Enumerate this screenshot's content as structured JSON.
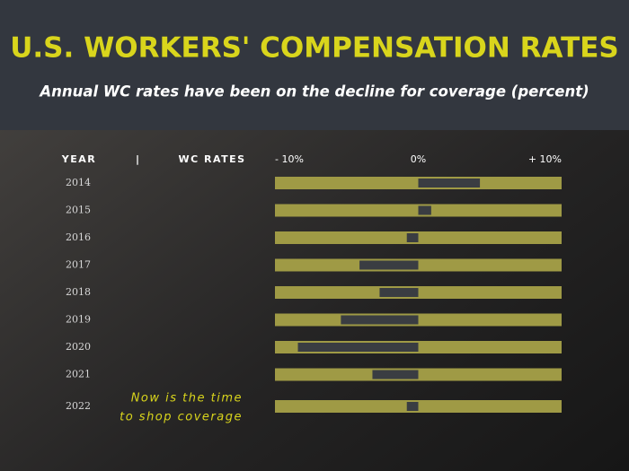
{
  "chart_data": {
    "type": "bar",
    "orientation": "horizontal",
    "title": "U.S. WORKERS' COMPENSATION RATES",
    "subtitle": "Annual WC rates have been on the decline for coverage (percent)",
    "column_headers": [
      "YEAR",
      "|",
      "WC RATES"
    ],
    "categories": [
      "2014",
      "2015",
      "2016",
      "2017",
      "2018",
      "2019",
      "2020",
      "2021",
      "2022"
    ],
    "values": [
      4.3,
      0.9,
      -0.8,
      -4.1,
      -2.7,
      -5.4,
      -8.4,
      -3.2,
      -0.8
    ],
    "color": "#3a3d42",
    "track_color": "#9f9a45",
    "xlim": [
      -10,
      10
    ],
    "xticks": [
      {
        "value": -10,
        "label": "- 10%"
      },
      {
        "value": 0,
        "label": "0%"
      },
      {
        "value": 10,
        "label": "+ 10%"
      }
    ],
    "annotation": [
      "Now is the time",
      "to shop coverage"
    ]
  }
}
